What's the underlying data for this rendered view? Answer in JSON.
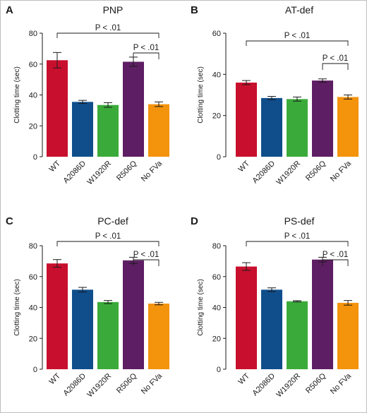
{
  "colors": {
    "WT": "#c8102e",
    "A2086D": "#104e8b",
    "W1920R": "#3aab3a",
    "R506Q": "#5e1e63",
    "No FVa": "#f4930c"
  },
  "chart_data": [
    {
      "type": "bar",
      "letter": "A",
      "title": "PNP",
      "ylabel": "Clotting time (sec)",
      "ylim": [
        0,
        80
      ],
      "yticks": [
        0,
        20,
        40,
        60,
        80
      ],
      "categories": [
        "WT",
        "A2086D",
        "W1920R",
        "R506Q",
        "No FVa"
      ],
      "values": [
        62.5,
        35.5,
        33.5,
        61.5,
        34.0
      ],
      "errors": [
        5.0,
        1.0,
        1.5,
        3.0,
        1.5
      ],
      "annotations": [
        {
          "from": 0,
          "to": 4,
          "text": "P < .01",
          "level": 1
        },
        {
          "from": 3,
          "to": 4,
          "text": "P < .01",
          "level": 2
        }
      ]
    },
    {
      "type": "bar",
      "letter": "B",
      "title": "AT-def",
      "ylabel": "Clotting time (sec)",
      "ylim": [
        0,
        60
      ],
      "yticks": [
        0,
        20,
        40,
        60
      ],
      "categories": [
        "WT",
        "A2086D",
        "W1920R",
        "R506Q",
        "No FVa"
      ],
      "values": [
        36.0,
        28.5,
        28.0,
        37.0,
        29.0
      ],
      "errors": [
        1.0,
        0.8,
        1.0,
        0.8,
        1.0
      ],
      "annotations": [
        {
          "from": 0,
          "to": 4,
          "text": "P < .01",
          "level": 1
        },
        {
          "from": 3,
          "to": 4,
          "text": "P < .01",
          "level": 2
        }
      ]
    },
    {
      "type": "bar",
      "letter": "C",
      "title": "PC-def",
      "ylabel": "Clotting time (sec)",
      "ylim": [
        0,
        80
      ],
      "yticks": [
        0,
        20,
        40,
        60,
        80
      ],
      "categories": [
        "WT",
        "A2086D",
        "W1920R",
        "R506Q",
        "No FVa"
      ],
      "values": [
        68.5,
        51.5,
        43.5,
        70.5,
        42.5
      ],
      "errors": [
        2.5,
        1.5,
        1.0,
        2.0,
        0.8
      ],
      "annotations": [
        {
          "from": 0,
          "to": 4,
          "text": "P < .01",
          "level": 1
        },
        {
          "from": 3,
          "to": 4,
          "text": "P < .01",
          "level": 2
        }
      ]
    },
    {
      "type": "bar",
      "letter": "D",
      "title": "PS-def",
      "ylabel": "Clotting time (sec)",
      "ylim": [
        0,
        80
      ],
      "yticks": [
        0,
        20,
        40,
        60,
        80
      ],
      "categories": [
        "WT",
        "A2086D",
        "W1920R",
        "R506Q",
        "No FVa"
      ],
      "values": [
        66.5,
        51.5,
        44.0,
        71.0,
        43.0
      ],
      "errors": [
        2.5,
        1.2,
        0.4,
        1.5,
        1.5
      ],
      "annotations": [
        {
          "from": 0,
          "to": 4,
          "text": "P < .01",
          "level": 1
        },
        {
          "from": 3,
          "to": 4,
          "text": "P < .01",
          "level": 2
        }
      ]
    }
  ]
}
